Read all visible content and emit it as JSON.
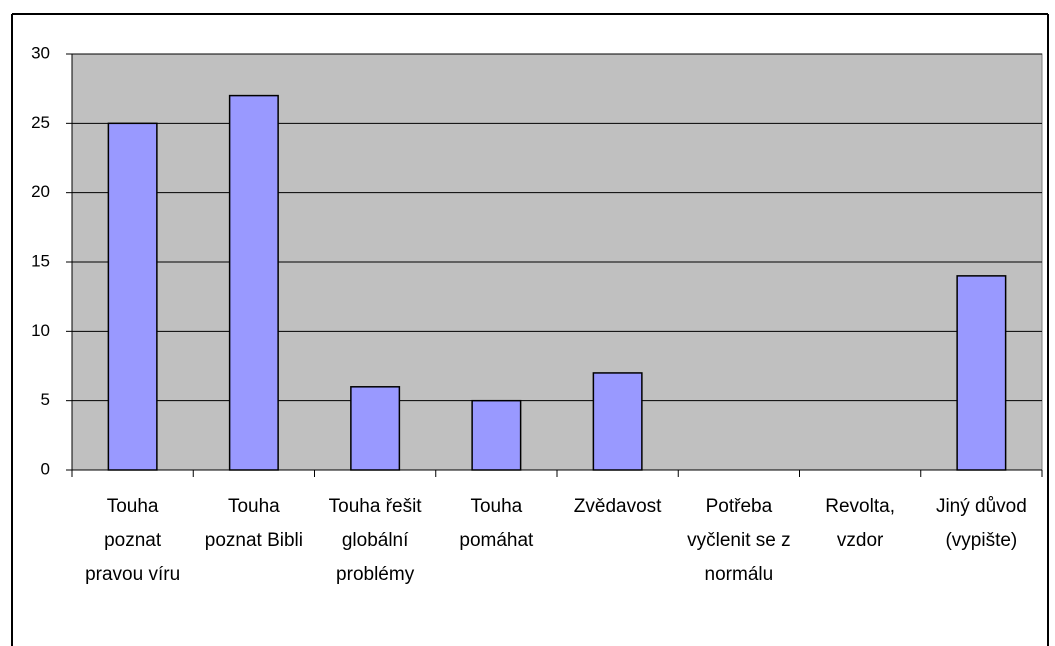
{
  "chart_data": {
    "type": "bar",
    "categories": [
      "Touha poznat pravou víru",
      "Touha poznat Bibli",
      "Touha řešit globální problémy",
      "Touha pomáhat",
      "Zvědavost",
      "Potřeba vyčlenit se z normálu",
      "Revolta, vzdor",
      "Jiný důvod (vypište)"
    ],
    "values": [
      25,
      27,
      6,
      5,
      7,
      0,
      0,
      14
    ],
    "color": "#9999ff",
    "ylim": [
      0,
      30
    ],
    "yticks": [
      0,
      5,
      10,
      15,
      20,
      25,
      30
    ],
    "grid": true
  }
}
